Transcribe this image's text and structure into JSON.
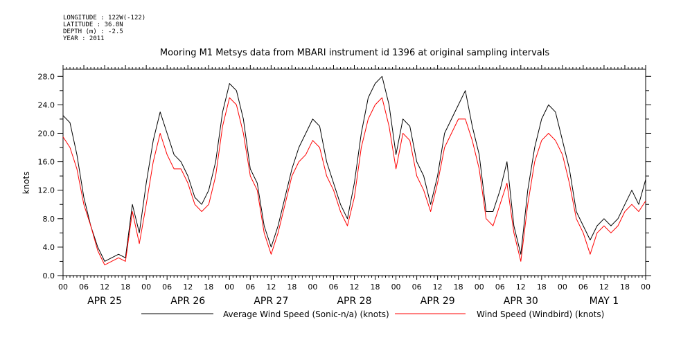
{
  "header": {
    "longitude": "LONGITUDE : 122W(-122)",
    "latitude": "LATITUDE : 36.8N",
    "depth": "DEPTH (m) : -2.5",
    "year": "YEAR : 2011"
  },
  "chart_data": {
    "type": "line",
    "title": "Mooring M1 Metsys data from MBARI instrument id 1396 at original sampling intervals",
    "ylabel": "knots",
    "ylim": [
      0,
      29
    ],
    "yticks": [
      "0.0",
      "4.0",
      "8.0",
      "12.0",
      "16.0",
      "20.0",
      "24.0",
      "28.0"
    ],
    "xlim_hours": [
      0,
      168
    ],
    "xtick_labels": [
      "00",
      "06",
      "12",
      "18",
      "00",
      "06",
      "12",
      "18",
      "00",
      "06",
      "12",
      "18",
      "00",
      "06",
      "12",
      "18",
      "00",
      "06",
      "12",
      "18",
      "00",
      "06",
      "12",
      "18",
      "00",
      "06",
      "12",
      "18",
      "00"
    ],
    "day_labels": [
      "APR 25",
      "APR 26",
      "APR 27",
      "APR 28",
      "APR 29",
      "APR 30",
      "MAY  1"
    ],
    "series": [
      {
        "name": "Average Wind Speed (Sonic-n/a) (knots)",
        "color": "#000000",
        "x": [
          0,
          2,
          4,
          6,
          8,
          10,
          12,
          14,
          16,
          18,
          20,
          22,
          24,
          26,
          28,
          30,
          32,
          34,
          36,
          38,
          40,
          42,
          44,
          46,
          48,
          50,
          52,
          54,
          56,
          58,
          60,
          62,
          64,
          66,
          68,
          70,
          72,
          74,
          76,
          78,
          80,
          82,
          84,
          86,
          88,
          90,
          92,
          94,
          96,
          98,
          100,
          102,
          104,
          106,
          108,
          110,
          112,
          114,
          116,
          118,
          120,
          122,
          124,
          126,
          128,
          130,
          132,
          134,
          136,
          138,
          140,
          142,
          144,
          146,
          148,
          150,
          152,
          154,
          156,
          158,
          160,
          162,
          164,
          166,
          168
        ],
        "y": [
          22.5,
          21.5,
          17,
          11,
          7,
          4,
          2,
          2.5,
          3,
          2.5,
          10,
          6,
          13,
          19,
          23,
          20,
          17,
          16,
          14,
          11,
          10,
          12,
          16,
          23,
          27,
          26,
          22,
          15,
          13,
          7,
          4,
          7,
          11,
          15,
          18,
          20,
          22,
          21,
          16,
          13,
          10,
          8,
          13,
          20,
          25,
          27,
          28,
          24,
          17,
          22,
          21,
          16,
          14,
          10,
          14,
          20,
          22,
          24,
          26,
          21,
          17,
          9,
          9,
          12,
          16,
          7,
          3,
          12,
          18,
          22,
          24,
          23,
          19,
          15,
          9,
          7,
          5,
          7,
          8,
          7,
          8,
          10,
          12,
          10,
          13.5
        ]
      },
      {
        "name": "Wind Speed (Windbird) (knots)",
        "color": "#ff0000",
        "x": [
          0,
          2,
          4,
          6,
          8,
          10,
          12,
          14,
          16,
          18,
          20,
          22,
          24,
          26,
          28,
          30,
          32,
          34,
          36,
          38,
          40,
          42,
          44,
          46,
          48,
          50,
          52,
          54,
          56,
          58,
          60,
          62,
          64,
          66,
          68,
          70,
          72,
          74,
          76,
          78,
          80,
          82,
          84,
          86,
          88,
          90,
          92,
          94,
          96,
          98,
          100,
          102,
          104,
          106,
          108,
          110,
          112,
          114,
          116,
          118,
          120,
          122,
          124,
          126,
          128,
          130,
          132,
          134,
          136,
          138,
          140,
          142,
          144,
          146,
          148,
          150,
          152,
          154,
          156,
          158,
          160,
          162,
          164,
          166,
          168
        ],
        "y": [
          19.5,
          18,
          15,
          10,
          7,
          3.5,
          1.5,
          2,
          2.5,
          2,
          9,
          4.5,
          10,
          16,
          20,
          17,
          15,
          15,
          13,
          10,
          9,
          10,
          14,
          21,
          25,
          24,
          20,
          14,
          12,
          6,
          3,
          6,
          10,
          14,
          16,
          17,
          19,
          18,
          14,
          12,
          9,
          7,
          11,
          18,
          22,
          24,
          25,
          21,
          15,
          20,
          19,
          14,
          12,
          9,
          13,
          18,
          20,
          22,
          22,
          19,
          15,
          8,
          7,
          10,
          13,
          6,
          2,
          10,
          16,
          19,
          20,
          19,
          17,
          13,
          8,
          6,
          3,
          6,
          7,
          6,
          7,
          9,
          10,
          9,
          10.5
        ]
      }
    ]
  }
}
